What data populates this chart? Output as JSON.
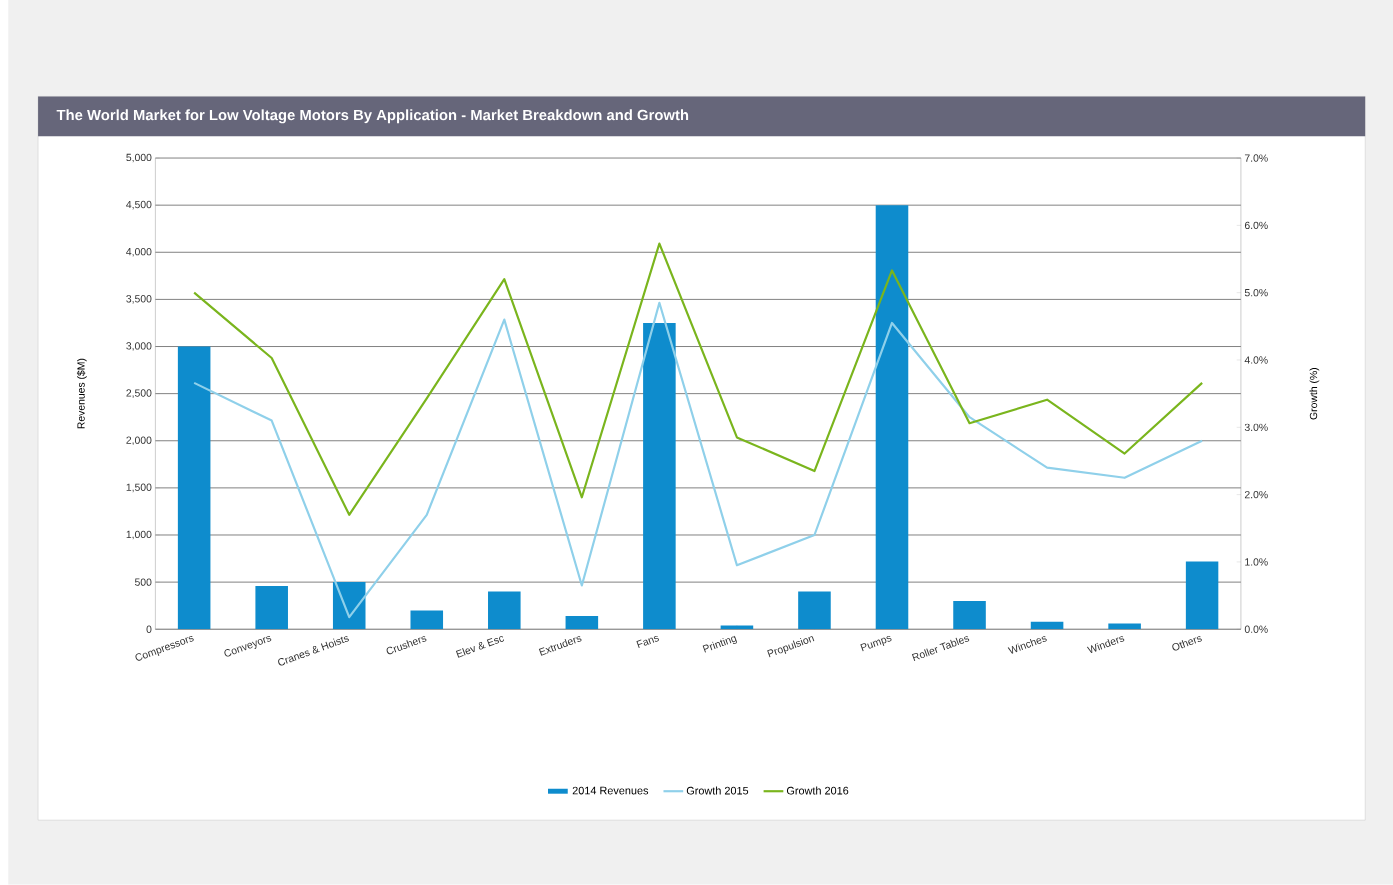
{
  "chart_data": {
    "type": "bar",
    "title": "The World Market for Low Voltage Motors By Application  - Market Breakdown and Growth",
    "ylabel": "Revenues ($M)",
    "y2label": "Growth (%)",
    "categories": [
      "Compressors",
      "Conveyors",
      "Cranes & Hoists",
      "Crushers",
      "Elev & Esc",
      "Extruders",
      "Fans",
      "Printing",
      "Propulsion",
      "Pumps",
      "Roller Tables",
      "Winches",
      "Winders",
      "Others"
    ],
    "series": [
      {
        "name": "2014 Revenues",
        "color": "#0e8ccd",
        "values": [
          3000,
          460,
          500,
          200,
          400,
          140,
          3250,
          40,
          400,
          4500,
          300,
          80,
          60,
          720
        ]
      },
      {
        "name": "Growth 2015",
        "type": "line",
        "axis": "y2",
        "color": "#8fd0ea",
        "values": [
          3.66,
          3.1,
          0.18,
          1.7,
          4.6,
          0.65,
          4.85,
          0.95,
          1.4,
          4.55,
          3.15,
          2.4,
          2.25,
          2.8
        ]
      },
      {
        "name": "Growth 2016",
        "type": "line",
        "axis": "y2",
        "color": "#7ab51d",
        "values": [
          5.0,
          4.03,
          1.7,
          3.43,
          5.2,
          1.96,
          5.73,
          2.85,
          2.35,
          5.33,
          3.06,
          3.41,
          2.61,
          3.66
        ]
      }
    ],
    "ylim": [
      0,
      5000
    ],
    "yticks": [
      0,
      500,
      {
        "value": 1000,
        "label": "1,000"
      },
      {
        "value": 1500,
        "label": "1,500"
      },
      {
        "value": 2000,
        "label": "2,000"
      },
      {
        "value": 2500,
        "label": "2,500"
      },
      {
        "value": 3000,
        "label": "3,000"
      },
      {
        "value": 3500,
        "label": "3,500"
      },
      {
        "value": 4000,
        "label": "4,000"
      },
      {
        "value": 4500,
        "label": "4,500"
      },
      {
        "value": 5000,
        "label": "5,000"
      }
    ],
    "y2lim": [
      0,
      7
    ],
    "y2ticks": [
      {
        "value": 0,
        "label": "0.0%"
      },
      {
        "value": 1,
        "label": "1.0%"
      },
      {
        "value": 2,
        "label": "2.0%"
      },
      {
        "value": 3,
        "label": "3.0%"
      },
      {
        "value": 4,
        "label": "4.0%"
      },
      {
        "value": 5,
        "label": "5.0%"
      },
      {
        "value": 6,
        "label": "6.0%"
      },
      {
        "value": 7,
        "label": "7.0%"
      }
    ],
    "grid": "y",
    "legend": "bottom"
  }
}
